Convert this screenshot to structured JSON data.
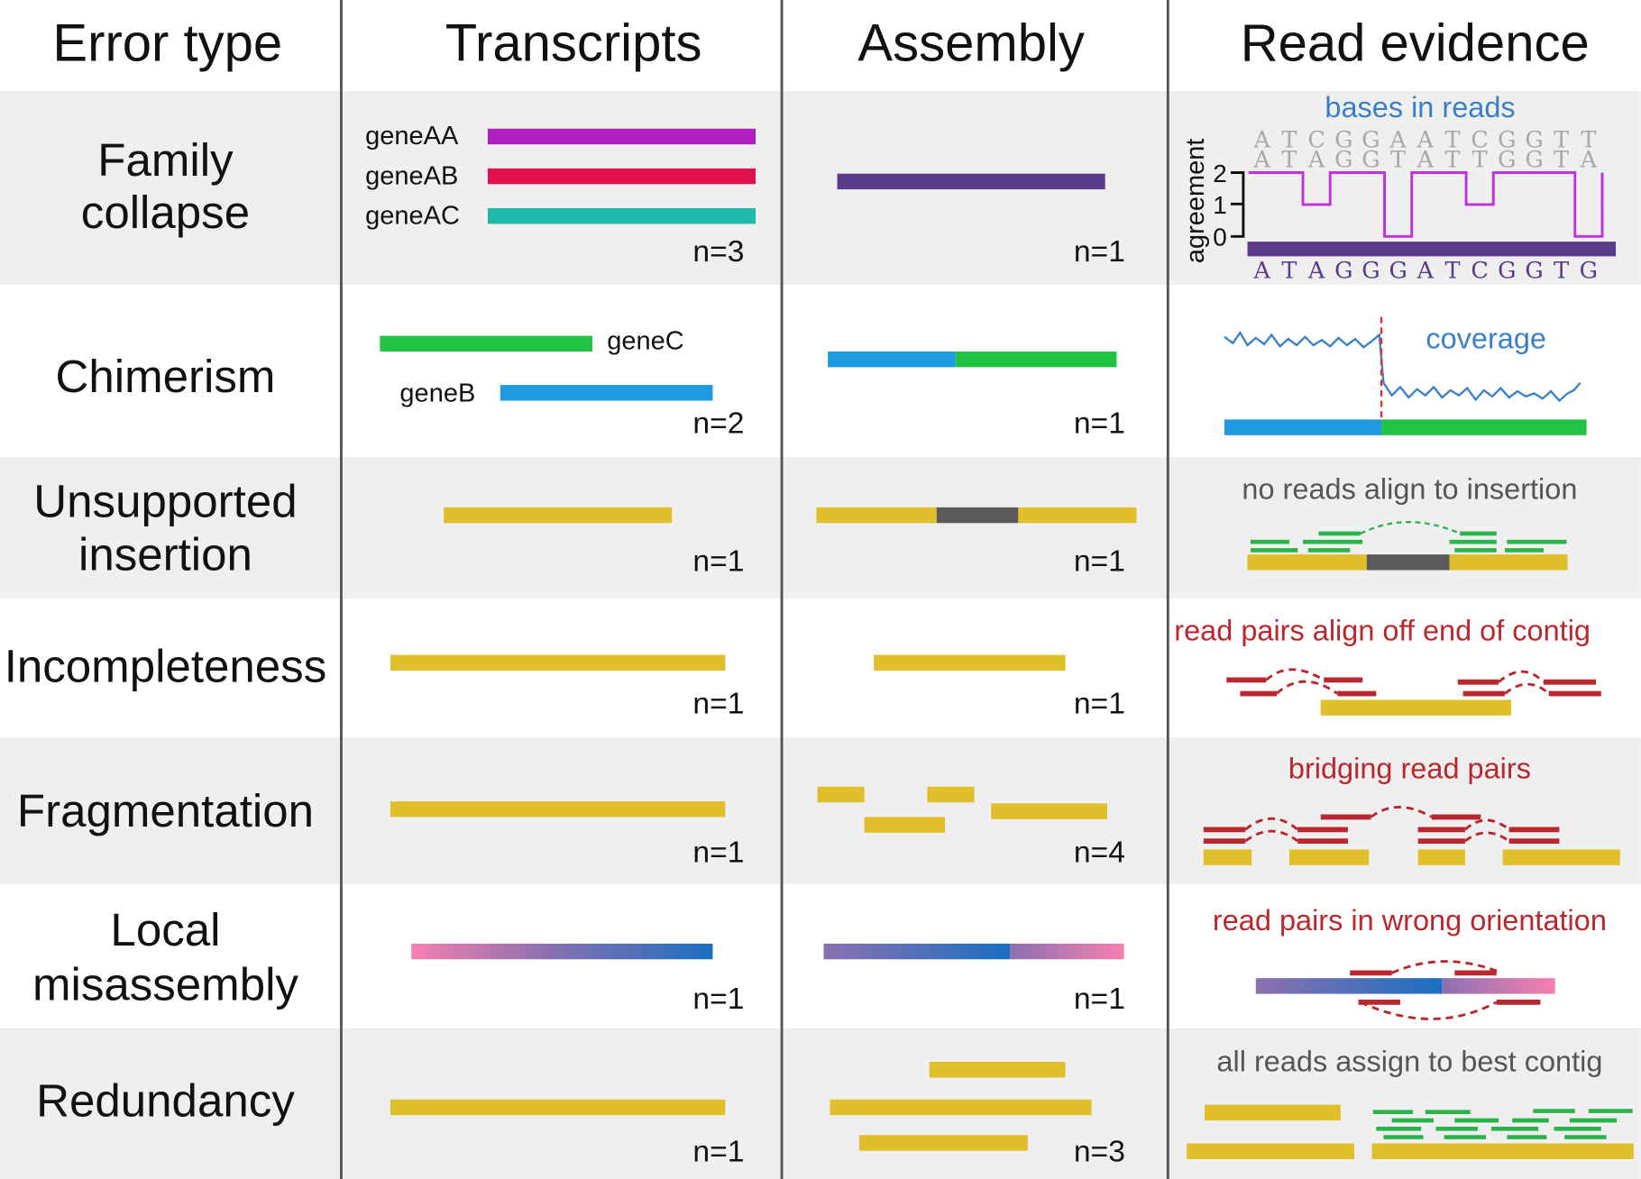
{
  "headers": [
    "Error type",
    "Transcripts",
    "Assembly",
    "Read evidence"
  ],
  "rows": [
    {
      "error_type": [
        "Family",
        "collapse"
      ],
      "transcripts": {
        "labels": [
          "geneAA",
          "geneAB",
          "geneAC"
        ],
        "n": "n=3"
      },
      "assembly": {
        "n": "n=1"
      },
      "evidence": {
        "caption": "bases in reads"
      }
    },
    {
      "error_type": [
        "Chimerism"
      ],
      "transcripts": {
        "labels": [
          "geneC",
          "geneB"
        ],
        "n": "n=2"
      },
      "assembly": {
        "n": "n=1"
      },
      "evidence": {
        "caption": "coverage"
      }
    },
    {
      "error_type": [
        "Unsupported",
        "insertion"
      ],
      "transcripts": {
        "n": "n=1"
      },
      "assembly": {
        "n": "n=1"
      },
      "evidence": {
        "caption": "no reads align to insertion"
      }
    },
    {
      "error_type": [
        "Incompleteness"
      ],
      "transcripts": {
        "n": "n=1"
      },
      "assembly": {
        "n": "n=1"
      },
      "evidence": {
        "caption": "read pairs align off end of contig"
      }
    },
    {
      "error_type": [
        "Fragmentation"
      ],
      "transcripts": {
        "n": "n=1"
      },
      "assembly": {
        "n": "n=4"
      },
      "evidence": {
        "caption": "bridging read pairs"
      }
    },
    {
      "error_type": [
        "Local",
        "misassembly"
      ],
      "transcripts": {
        "n": "n=1"
      },
      "assembly": {
        "n": "n=1"
      },
      "evidence": {
        "caption": "read pairs in wrong orientation"
      }
    },
    {
      "error_type": [
        "Redundancy"
      ],
      "transcripts": {
        "n": "n=1"
      },
      "assembly": {
        "n": "n=3"
      },
      "evidence": {
        "caption": "all reads assign to best contig"
      }
    }
  ],
  "family_collapse_evidence": {
    "axis_label": "agreement",
    "ticks": [
      "2",
      "1",
      "0"
    ],
    "read1": [
      "A",
      "T",
      "C",
      "G",
      "G",
      "A",
      "A",
      "T",
      "C",
      "G",
      "G",
      "T",
      "T"
    ],
    "read2": [
      "A",
      "T",
      "A",
      "G",
      "G",
      "T",
      "A",
      "T",
      "T",
      "G",
      "G",
      "T",
      "A"
    ],
    "reference": [
      "A",
      "T",
      "A",
      "G",
      "G",
      "G",
      "A",
      "T",
      "C",
      "G",
      "G",
      "T",
      "G"
    ],
    "agreement": [
      2,
      2,
      1,
      2,
      2,
      0,
      2,
      2,
      1,
      2,
      2,
      2,
      0
    ]
  },
  "colors": {
    "geneAA": "#b020c0",
    "geneAB": "#e0104c",
    "geneAC": "#20b8a8",
    "collapsed": "#5a3a8a",
    "geneB": "#1e9be0",
    "geneC": "#22c244",
    "contig": "#e0bf2a",
    "insert": "#5a5a5a",
    "caption_blue": "#3a80c8",
    "caption_red": "#b8282e",
    "caption_gray": "#555555",
    "agreement_line": "#c030e0"
  }
}
